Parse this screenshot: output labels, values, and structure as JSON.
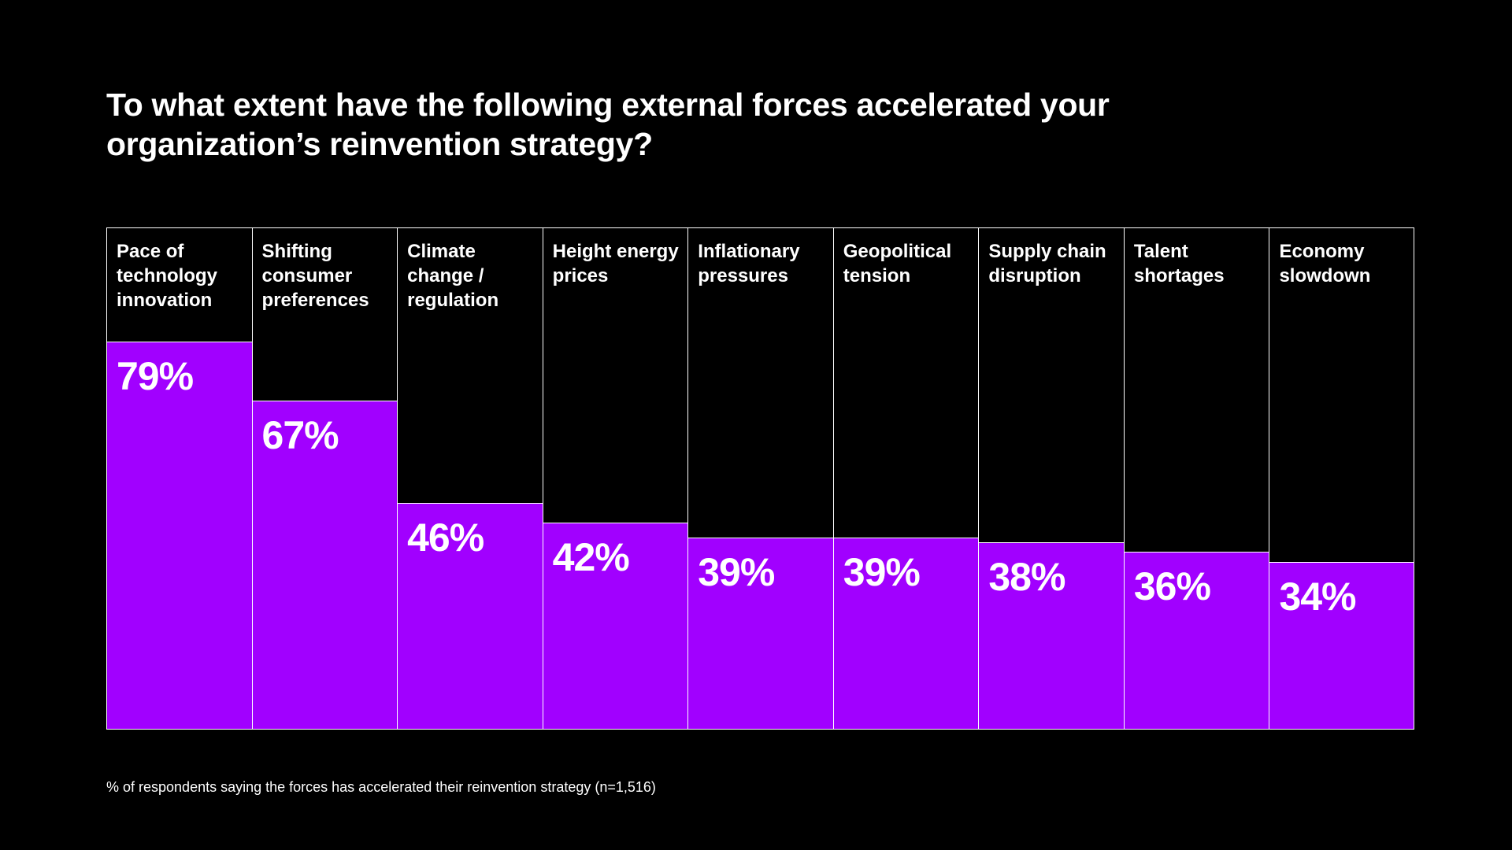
{
  "chart_data": {
    "type": "bar",
    "title": "To what extent have the following external forces accelerated your organization’s reinvention strategy?",
    "categories": [
      "Pace of technology innovation",
      "Shifting consumer preferences",
      "Climate change / regulation",
      "Height energy prices",
      "Inflationary pressures",
      "Geopolitical tension",
      "Supply chain disruption",
      "Talent shortages",
      "Economy slowdown"
    ],
    "values": [
      79,
      67,
      46,
      42,
      39,
      39,
      38,
      36,
      34
    ],
    "value_labels": [
      "79%",
      "67%",
      "46%",
      "42%",
      "39%",
      "39%",
      "38%",
      "36%",
      "34%"
    ],
    "unit": "%",
    "footnote": "% of respondents saying the forces has accelerated their reinvention strategy (n=1,516)",
    "colors": {
      "bar": "#a100ff",
      "background": "#000000",
      "border": "#ffffff"
    },
    "grid": false
  }
}
